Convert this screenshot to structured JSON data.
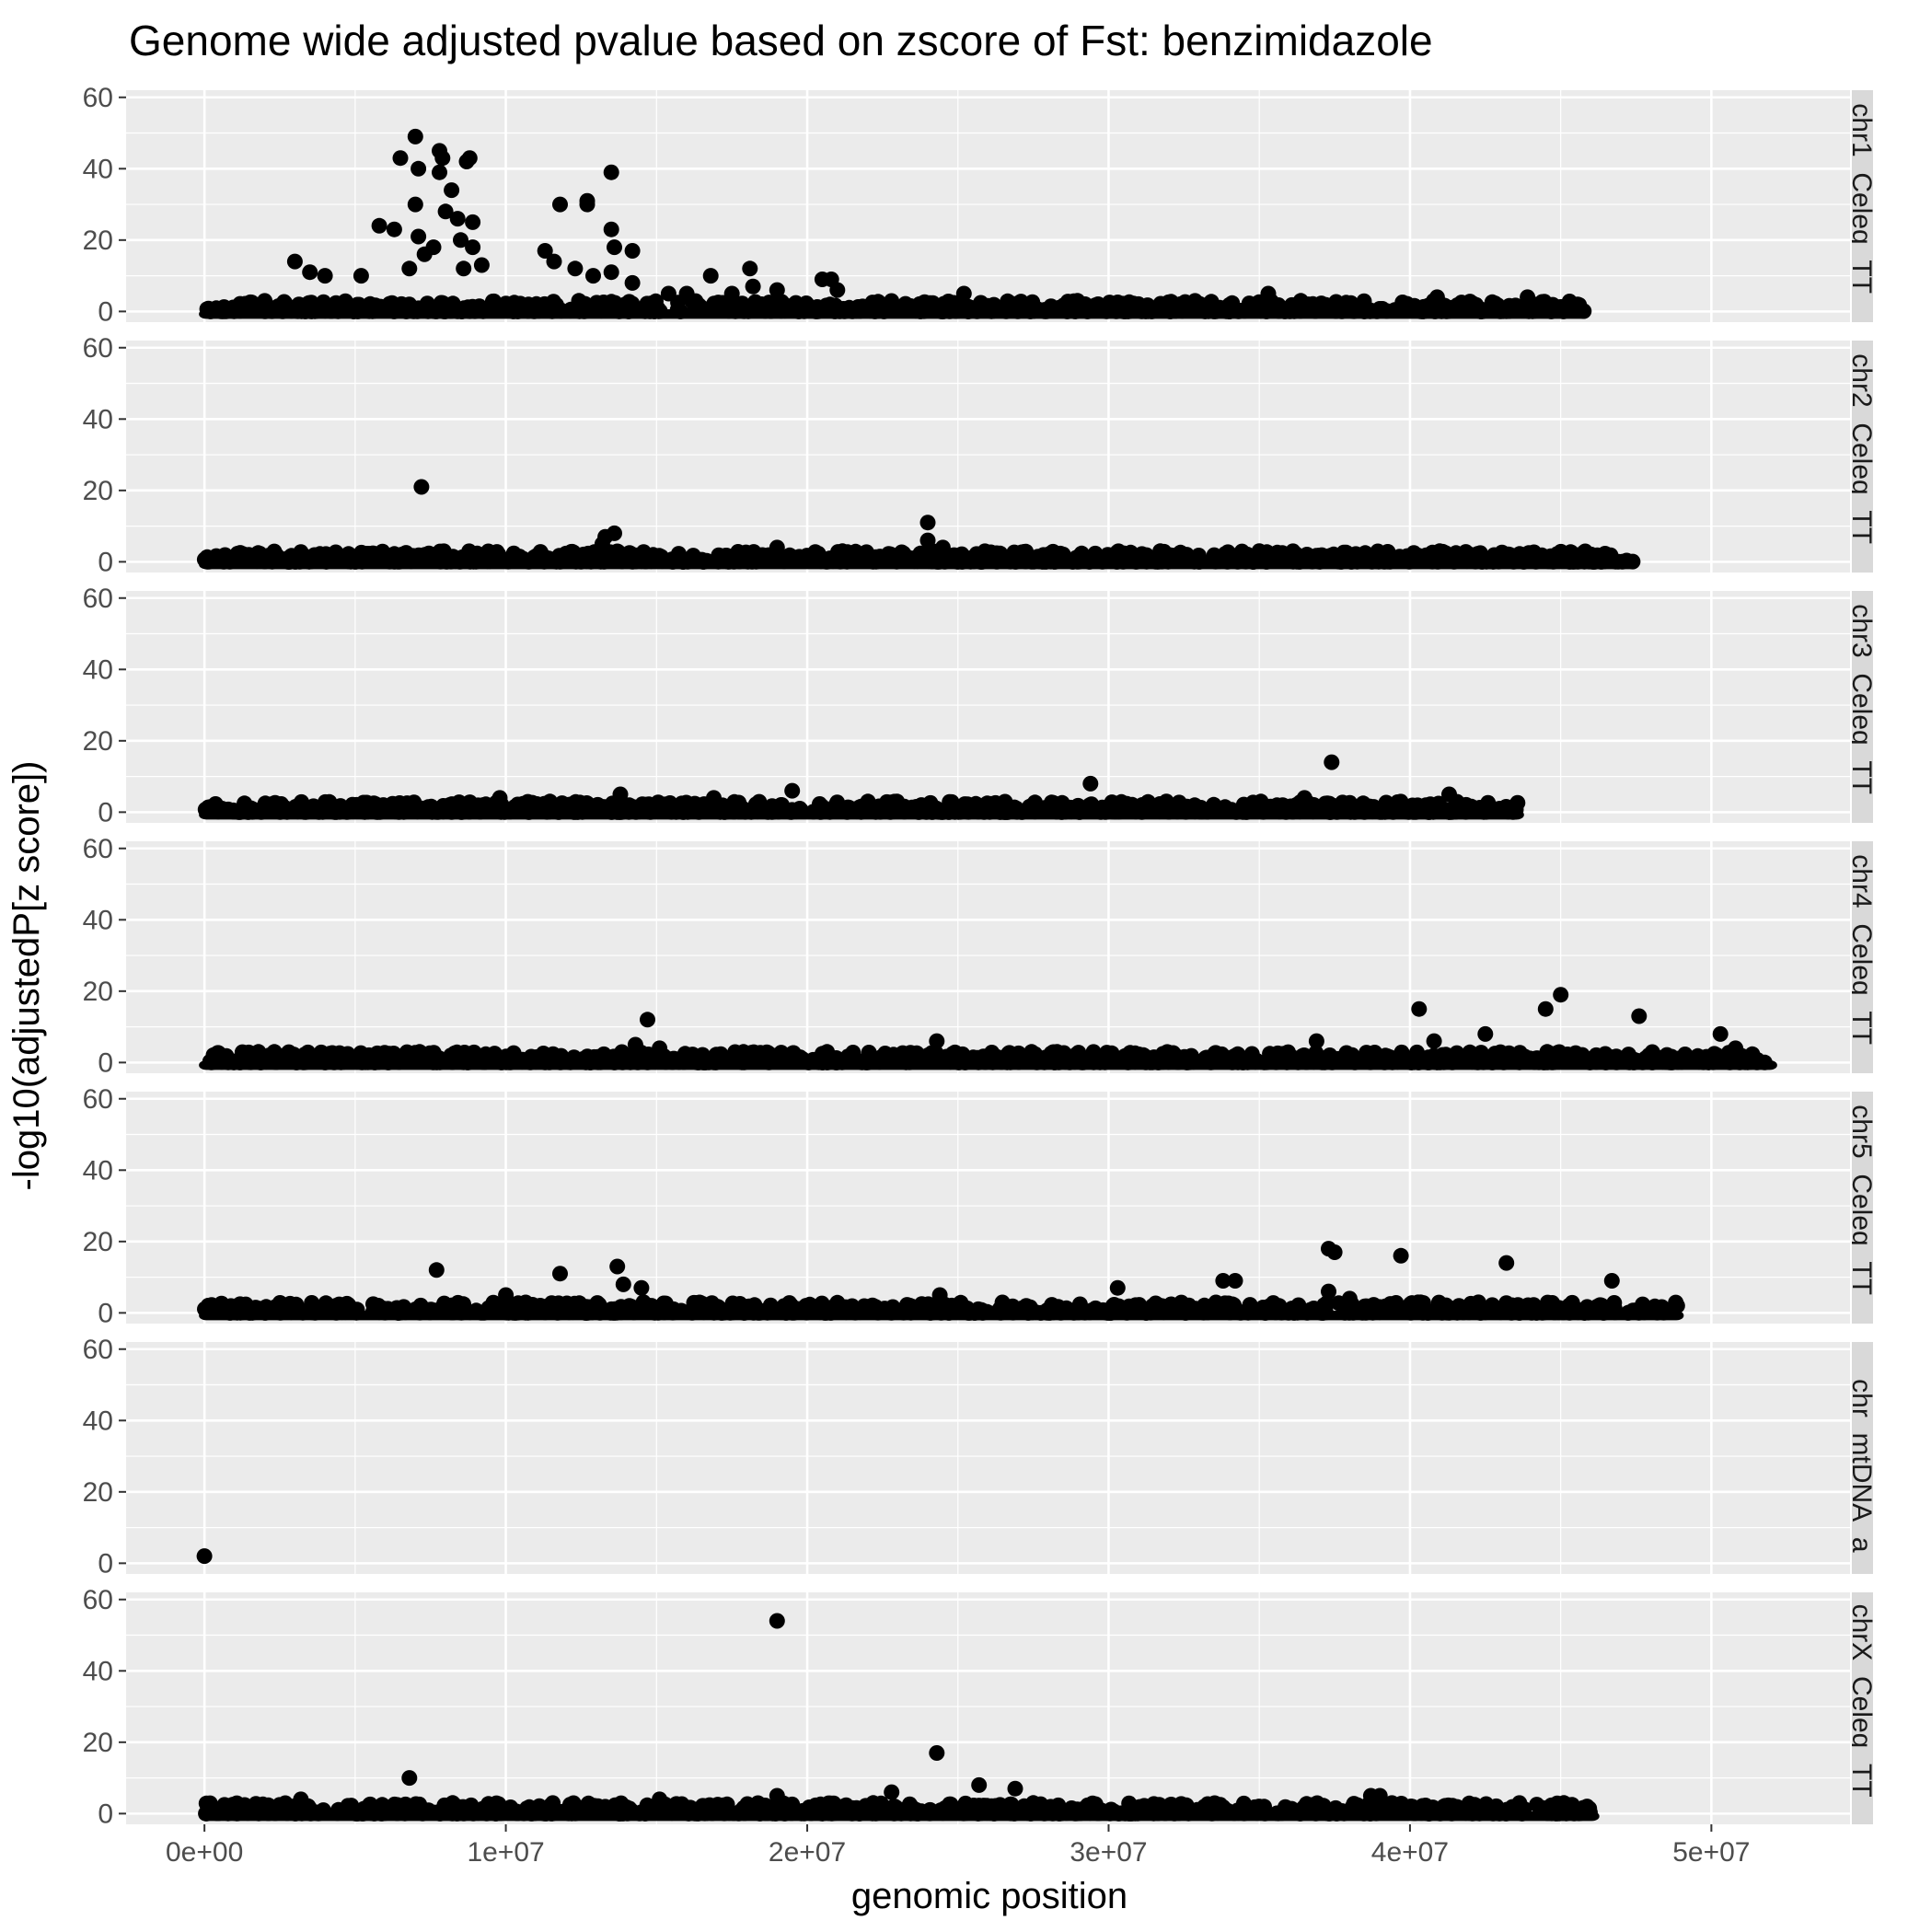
{
  "chart_data": {
    "type": "scatter",
    "title": "Genome wide adjusted pvalue based on zscore of Fst: benzimidazole",
    "xlabel": "genomic position",
    "ylabel": "-log10(adjustedP[z score])",
    "xlim": [
      -2600000,
      54600000
    ],
    "ylim": [
      -3,
      62
    ],
    "x_ticks": [
      0,
      10000000,
      20000000,
      30000000,
      40000000,
      50000000
    ],
    "x_tick_labels": [
      "0e+00",
      "1e+07",
      "2e+07",
      "3e+07",
      "4e+07",
      "5e+07"
    ],
    "y_ticks": [
      0,
      20,
      40,
      60
    ],
    "y_tick_labels": [
      "0",
      "20",
      "40",
      "60"
    ],
    "grid": true,
    "facet": "rows",
    "colors": {
      "panel_bg": "#ebebeb",
      "grid": "#ffffff",
      "strip_bg": "#d9d9d9",
      "point": "#000000"
    },
    "panels": [
      {
        "strip": "chr1_Celeg_TT_",
        "length": 45800000,
        "points": [
          [
            3000000,
            14
          ],
          [
            3500000,
            11
          ],
          [
            4000000,
            10
          ],
          [
            5200000,
            10
          ],
          [
            5800000,
            24
          ],
          [
            6300000,
            23
          ],
          [
            6500000,
            43
          ],
          [
            7000000,
            49
          ],
          [
            7100000,
            40
          ],
          [
            7000000,
            30
          ],
          [
            7100000,
            21
          ],
          [
            6800000,
            12
          ],
          [
            7300000,
            16
          ],
          [
            7600000,
            18
          ],
          [
            7800000,
            45
          ],
          [
            7900000,
            43
          ],
          [
            7800000,
            39
          ],
          [
            8000000,
            28
          ],
          [
            8200000,
            34
          ],
          [
            8400000,
            26
          ],
          [
            8700000,
            42
          ],
          [
            8800000,
            43
          ],
          [
            8900000,
            25
          ],
          [
            8500000,
            20
          ],
          [
            8900000,
            18
          ],
          [
            8600000,
            12
          ],
          [
            9200000,
            13
          ],
          [
            11300000,
            17
          ],
          [
            11600000,
            14
          ],
          [
            11800000,
            30
          ],
          [
            12300000,
            12
          ],
          [
            12700000,
            31
          ],
          [
            12700000,
            30
          ],
          [
            12900000,
            10
          ],
          [
            13500000,
            39
          ],
          [
            13500000,
            23
          ],
          [
            13600000,
            18
          ],
          [
            13500000,
            11
          ],
          [
            14200000,
            17
          ],
          [
            14200000,
            8
          ],
          [
            15400000,
            5
          ],
          [
            16000000,
            5
          ],
          [
            16800000,
            10
          ],
          [
            17500000,
            5
          ],
          [
            18100000,
            12
          ],
          [
            18200000,
            7
          ],
          [
            19000000,
            6
          ],
          [
            20500000,
            9
          ],
          [
            20800000,
            9
          ],
          [
            21000000,
            6
          ],
          [
            25200000,
            5
          ],
          [
            35300000,
            5
          ],
          [
            40900000,
            4
          ],
          [
            43900000,
            4
          ]
        ],
        "baseline_max": 3
      },
      {
        "strip": "chr2_Celeg_TT_",
        "length": 47400000,
        "points": [
          [
            7200000,
            21
          ],
          [
            13300000,
            7
          ],
          [
            13600000,
            8
          ],
          [
            13200000,
            5
          ],
          [
            24000000,
            11
          ],
          [
            24000000,
            6
          ],
          [
            24500000,
            4
          ],
          [
            19000000,
            4
          ],
          [
            35000000,
            3
          ]
        ],
        "baseline_max": 3
      },
      {
        "strip": "chr3_Celeg_TT_",
        "length": 43600000,
        "points": [
          [
            9800000,
            4
          ],
          [
            13800000,
            5
          ],
          [
            16900000,
            4
          ],
          [
            19500000,
            6
          ],
          [
            29400000,
            8
          ],
          [
            37400000,
            14
          ],
          [
            36500000,
            4
          ],
          [
            41300000,
            5
          ]
        ],
        "baseline_max": 3
      },
      {
        "strip": "chr4_Celeg_TT_",
        "length": 52000000,
        "points": [
          [
            14300000,
            5
          ],
          [
            14700000,
            12
          ],
          [
            15100000,
            4
          ],
          [
            24300000,
            6
          ],
          [
            36900000,
            6
          ],
          [
            40300000,
            15
          ],
          [
            40800000,
            6
          ],
          [
            42500000,
            8
          ],
          [
            44500000,
            15
          ],
          [
            45000000,
            19
          ],
          [
            47600000,
            13
          ],
          [
            50300000,
            8
          ],
          [
            50800000,
            4
          ]
        ],
        "baseline_max": 3
      },
      {
        "strip": "chr5_Celeg_TT_",
        "length": 48900000,
        "points": [
          [
            7700000,
            12
          ],
          [
            10000000,
            5
          ],
          [
            11800000,
            11
          ],
          [
            13700000,
            13
          ],
          [
            13900000,
            8
          ],
          [
            14500000,
            7
          ],
          [
            24400000,
            5
          ],
          [
            30300000,
            7
          ],
          [
            33800000,
            9
          ],
          [
            34200000,
            9
          ],
          [
            37300000,
            18
          ],
          [
            37500000,
            17
          ],
          [
            37300000,
            6
          ],
          [
            38000000,
            4
          ],
          [
            39700000,
            16
          ],
          [
            43200000,
            14
          ],
          [
            46700000,
            9
          ]
        ],
        "baseline_max": 3
      },
      {
        "strip": "_chr_mtDNA_a",
        "length": 0,
        "points": [
          [
            0,
            2
          ]
        ],
        "baseline_max": 0
      },
      {
        "strip": "chrX_Celeg_TT_",
        "length": 46100000,
        "points": [
          [
            6800000,
            10
          ],
          [
            19000000,
            54
          ],
          [
            19000000,
            5
          ],
          [
            22800000,
            6
          ],
          [
            24300000,
            17
          ],
          [
            25700000,
            8
          ],
          [
            26900000,
            7
          ],
          [
            38700000,
            5
          ],
          [
            39000000,
            5
          ],
          [
            15100000,
            4
          ],
          [
            3200000,
            4
          ]
        ],
        "baseline_max": 3
      }
    ]
  }
}
